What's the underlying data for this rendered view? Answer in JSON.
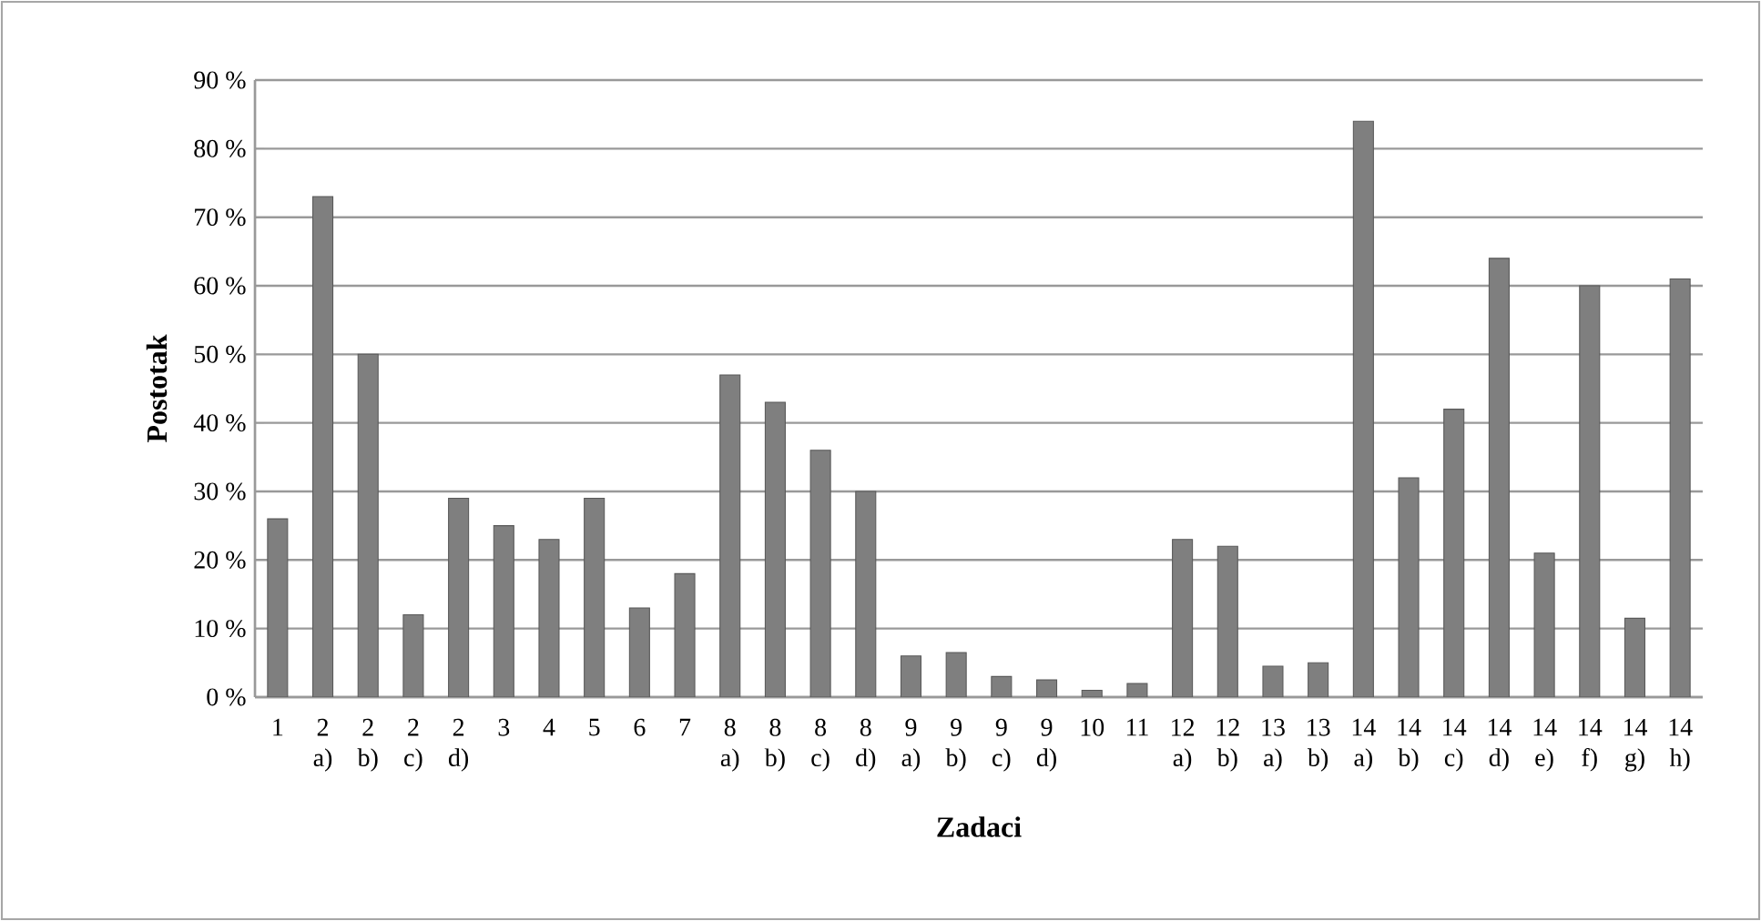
{
  "chart_data": {
    "type": "bar",
    "xlabel": "Zadaci",
    "ylabel": "Postotak",
    "categories": [
      "1",
      "2 a)",
      "2 b)",
      "2 c)",
      "2 d)",
      "3",
      "4",
      "5",
      "6",
      "7",
      "8 a)",
      "8 b)",
      "8 c)",
      "8 d)",
      "9 a)",
      "9 b)",
      "9 c)",
      "9 d)",
      "10",
      "11",
      "12 a)",
      "12 b)",
      "13 a)",
      "13 b)",
      "14 a)",
      "14 b)",
      "14 c)",
      "14 d)",
      "14 e)",
      "14 f)",
      "14 g)",
      "14 h)"
    ],
    "values": [
      26,
      73,
      50,
      12,
      29,
      25,
      23,
      29,
      13,
      18,
      47,
      43,
      36,
      30,
      6,
      6.5,
      3,
      2.5,
      1,
      2,
      23,
      22,
      4.5,
      5,
      84,
      32,
      42,
      64,
      21,
      60,
      11.5,
      61
    ],
    "color": "#7f7f7f",
    "ylim": [
      0,
      90
    ],
    "yticks": [
      {
        "value": 0,
        "label": "0 %"
      },
      {
        "value": 10,
        "label": "10 %"
      },
      {
        "value": 20,
        "label": "20 %"
      },
      {
        "value": 30,
        "label": "30 %"
      },
      {
        "value": 40,
        "label": "40 %"
      },
      {
        "value": 50,
        "label": "50 %"
      },
      {
        "value": 60,
        "label": "60 %"
      },
      {
        "value": 70,
        "label": "70 %"
      },
      {
        "value": 80,
        "label": "80 %"
      },
      {
        "value": 90,
        "label": "90 %"
      }
    ],
    "grid": "y"
  }
}
